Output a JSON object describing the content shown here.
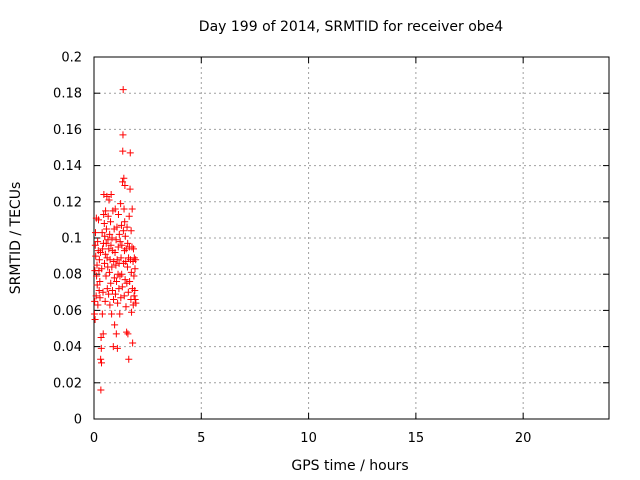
{
  "chart_data": {
    "type": "scatter",
    "title": "Day 199 of 2014, SRMTID for receiver obe4",
    "xlabel": "GPS time / hours",
    "ylabel": "SRMTID / TECUs",
    "xlim": [
      0,
      24
    ],
    "ylim": [
      0,
      0.2
    ],
    "xticks": [
      "0",
      "5",
      "10",
      "15",
      "20"
    ],
    "yticks": [
      "0",
      "0.02",
      "0.04",
      "0.06",
      "0.08",
      "0.1",
      "0.12",
      "0.14",
      "0.16",
      "0.18",
      "0.2"
    ],
    "grid": true,
    "marker": "+",
    "color": "#ff0000",
    "points": [
      [
        0.02,
        0.058
      ],
      [
        0.03,
        0.065
      ],
      [
        0.04,
        0.082
      ],
      [
        0.05,
        0.055
      ],
      [
        0.06,
        0.096
      ],
      [
        0.07,
        0.103
      ],
      [
        0.08,
        0.09
      ],
      [
        0.1,
        0.068
      ],
      [
        0.11,
        0.111
      ],
      [
        0.12,
        0.079
      ],
      [
        0.14,
        0.085
      ],
      [
        0.15,
        0.074
      ],
      [
        0.17,
        0.098
      ],
      [
        0.18,
        0.063
      ],
      [
        0.2,
        0.093
      ],
      [
        0.21,
        0.11
      ],
      [
        0.23,
        0.082
      ],
      [
        0.24,
        0.071
      ],
      [
        0.25,
        0.088
      ],
      [
        0.27,
        0.076
      ],
      [
        0.28,
        0.067
      ],
      [
        0.3,
        0.092
      ],
      [
        0.31,
        0.033
      ],
      [
        0.32,
        0.016
      ],
      [
        0.33,
        0.045
      ],
      [
        0.34,
        0.039
      ],
      [
        0.35,
        0.031
      ],
      [
        0.36,
        0.083
      ],
      [
        0.38,
        0.103
      ],
      [
        0.39,
        0.058
      ],
      [
        0.4,
        0.094
      ],
      [
        0.42,
        0.07
      ],
      [
        0.43,
        0.047
      ],
      [
        0.44,
        0.097
      ],
      [
        0.45,
        0.113
      ],
      [
        0.46,
        0.124
      ],
      [
        0.48,
        0.108
      ],
      [
        0.49,
        0.086
      ],
      [
        0.5,
        0.101
      ],
      [
        0.52,
        0.065
      ],
      [
        0.53,
        0.091
      ],
      [
        0.54,
        0.115
      ],
      [
        0.56,
        0.079
      ],
      [
        0.57,
        0.097
      ],
      [
        0.58,
        0.105
      ],
      [
        0.6,
        0.123
      ],
      [
        0.61,
        0.089
      ],
      [
        0.62,
        0.072
      ],
      [
        0.64,
        0.084
      ],
      [
        0.65,
        0.099
      ],
      [
        0.66,
        0.112
      ],
      [
        0.68,
        0.069
      ],
      [
        0.69,
        0.094
      ],
      [
        0.7,
        0.121
      ],
      [
        0.72,
        0.081
      ],
      [
        0.73,
        0.102
      ],
      [
        0.74,
        0.063
      ],
      [
        0.75,
        0.088
      ],
      [
        0.77,
        0.109
      ],
      [
        0.78,
        0.075
      ],
      [
        0.79,
        0.096
      ],
      [
        0.8,
        0.124
      ],
      [
        0.82,
        0.058
      ],
      [
        0.83,
        0.084
      ],
      [
        0.84,
        0.1
      ],
      [
        0.86,
        0.071
      ],
      [
        0.87,
        0.093
      ],
      [
        0.88,
        0.115
      ],
      [
        0.9,
        0.04
      ],
      [
        0.91,
        0.066
      ],
      [
        0.92,
        0.087
      ],
      [
        0.94,
        0.105
      ],
      [
        0.95,
        0.078
      ],
      [
        0.96,
        0.052
      ],
      [
        0.98,
        0.092
      ],
      [
        0.99,
        0.116
      ],
      [
        1.0,
        0.069
      ],
      [
        1.02,
        0.085
      ],
      [
        1.03,
        0.099
      ],
      [
        1.04,
        0.047
      ],
      [
        1.05,
        0.076
      ],
      [
        1.07,
        0.106
      ],
      [
        1.08,
        0.088
      ],
      [
        1.09,
        0.039
      ],
      [
        1.1,
        0.064
      ],
      [
        1.12,
        0.08
      ],
      [
        1.13,
        0.095
      ],
      [
        1.14,
        0.113
      ],
      [
        1.16,
        0.072
      ],
      [
        1.17,
        0.086
      ],
      [
        1.18,
        0.102
      ],
      [
        1.2,
        0.058
      ],
      [
        1.21,
        0.079
      ],
      [
        1.22,
        0.098
      ],
      [
        1.24,
        0.119
      ],
      [
        1.25,
        0.067
      ],
      [
        1.26,
        0.089
      ],
      [
        1.28,
        0.107
      ],
      [
        1.29,
        0.08
      ],
      [
        1.3,
        0.096
      ],
      [
        1.32,
        0.073
      ],
      [
        1.33,
        0.131
      ],
      [
        1.34,
        0.148
      ],
      [
        1.35,
        0.157
      ],
      [
        1.36,
        0.182
      ],
      [
        1.37,
        0.104
      ],
      [
        1.38,
        0.086
      ],
      [
        1.39,
        0.133
      ],
      [
        1.4,
        0.116
      ],
      [
        1.41,
        0.068
      ],
      [
        1.42,
        0.093
      ],
      [
        1.43,
        0.109
      ],
      [
        1.44,
        0.129
      ],
      [
        1.45,
        0.077
      ],
      [
        1.46,
        0.101
      ],
      [
        1.48,
        0.087
      ],
      [
        1.49,
        0.062
      ],
      [
        1.5,
        0.094
      ],
      [
        1.52,
        0.048
      ],
      [
        1.53,
        0.075
      ],
      [
        1.54,
        0.106
      ],
      [
        1.56,
        0.084
      ],
      [
        1.57,
        0.097
      ],
      [
        1.58,
        0.047
      ],
      [
        1.6,
        0.07
      ],
      [
        1.61,
        0.089
      ],
      [
        1.62,
        0.033
      ],
      [
        1.64,
        0.112
      ],
      [
        1.65,
        0.095
      ],
      [
        1.66,
        0.076
      ],
      [
        1.68,
        0.127
      ],
      [
        1.69,
        0.147
      ],
      [
        1.7,
        0.088
      ],
      [
        1.72,
        0.066
      ],
      [
        1.73,
        0.104
      ],
      [
        1.74,
        0.081
      ],
      [
        1.75,
        0.059
      ],
      [
        1.77,
        0.095
      ],
      [
        1.78,
        0.116
      ],
      [
        1.79,
        0.072
      ],
      [
        1.8,
        0.042
      ],
      [
        1.82,
        0.087
      ],
      [
        1.83,
        0.063
      ],
      [
        1.84,
        0.094
      ],
      [
        1.86,
        0.079
      ],
      [
        1.87,
        0.068
      ],
      [
        1.88,
        0.089
      ],
      [
        1.9,
        0.071
      ],
      [
        1.91,
        0.083
      ],
      [
        1.92,
        0.066
      ],
      [
        1.94,
        0.088
      ],
      [
        1.95,
        0.064
      ]
    ]
  }
}
